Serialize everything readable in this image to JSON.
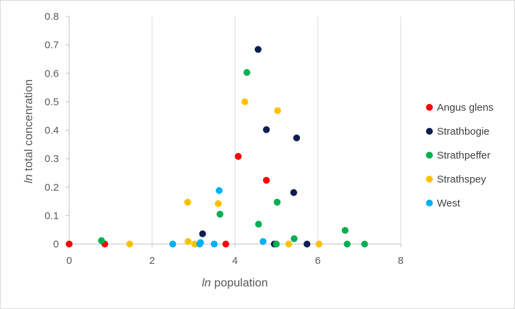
{
  "chart_data": {
    "type": "scatter",
    "xlabel_italic": "ln",
    "xlabel_rest": " population",
    "ylabel_italic": "ln",
    "ylabel_rest": " total concenration",
    "xlim": [
      0,
      8
    ],
    "ylim": [
      0,
      0.8
    ],
    "x_ticks": [
      0,
      2,
      4,
      6,
      8
    ],
    "y_ticks": [
      0,
      0.1,
      0.2,
      0.3,
      0.4,
      0.5,
      0.6,
      0.7,
      0.8
    ],
    "grid": "vertical",
    "legend_position": "right",
    "series": [
      {
        "name": "Angus glens",
        "color": "#ff0000",
        "points": [
          [
            0.0,
            0.0
          ],
          [
            0.86,
            0.0
          ],
          [
            3.78,
            0.0
          ],
          [
            4.08,
            0.308
          ],
          [
            4.76,
            0.224
          ]
        ]
      },
      {
        "name": "Strathbogie",
        "color": "#0d1f4f",
        "points": [
          [
            3.22,
            0.036
          ],
          [
            4.56,
            0.684
          ],
          [
            4.76,
            0.402
          ],
          [
            4.95,
            0.0
          ],
          [
            5.42,
            0.181
          ],
          [
            5.49,
            0.373
          ],
          [
            5.74,
            0.0
          ]
        ]
      },
      {
        "name": "Strathpeffer",
        "color": "#00b050",
        "points": [
          [
            0.78,
            0.012
          ],
          [
            3.64,
            0.105
          ],
          [
            4.29,
            0.603
          ],
          [
            4.57,
            0.07
          ],
          [
            5.0,
            0.0
          ],
          [
            5.02,
            0.147
          ],
          [
            5.43,
            0.019
          ],
          [
            6.66,
            0.048
          ],
          [
            6.71,
            0.0
          ],
          [
            7.13,
            0.0
          ]
        ]
      },
      {
        "name": "Strathspey",
        "color": "#ffc000",
        "points": [
          [
            1.46,
            0.0
          ],
          [
            2.86,
            0.147
          ],
          [
            2.87,
            0.009
          ],
          [
            3.03,
            0.0
          ],
          [
            3.6,
            0.142
          ],
          [
            4.24,
            0.5
          ],
          [
            5.03,
            0.469
          ],
          [
            5.3,
            0.0
          ],
          [
            6.03,
            0.0
          ]
        ]
      },
      {
        "name": "West",
        "color": "#00b0f0",
        "points": [
          [
            2.5,
            0.0
          ],
          [
            3.15,
            0.0
          ],
          [
            3.17,
            0.005
          ],
          [
            3.5,
            0.0
          ],
          [
            3.62,
            0.188
          ],
          [
            4.68,
            0.009
          ]
        ]
      }
    ]
  }
}
